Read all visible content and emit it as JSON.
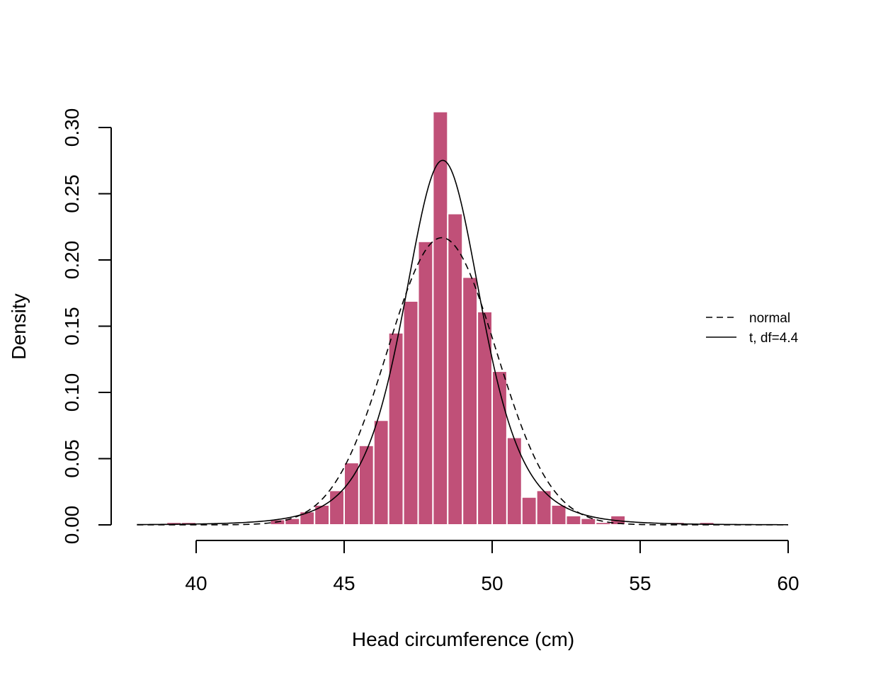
{
  "chart_data": {
    "type": "bar",
    "title": "",
    "xlabel": "Head circumference (cm)",
    "ylabel": "Density",
    "xlim": [
      38,
      60
    ],
    "ylim": [
      0,
      0.3
    ],
    "x_ticks": [
      40,
      45,
      50,
      55,
      60
    ],
    "y_ticks": [
      0.0,
      0.05,
      0.1,
      0.15,
      0.2,
      0.25,
      0.3
    ],
    "y_tick_labels": [
      "0.00",
      "0.05",
      "0.10",
      "0.15",
      "0.20",
      "0.25",
      "0.30"
    ],
    "bin_width": 0.5,
    "bins_start": [
      39.0,
      39.5,
      40.0,
      40.5,
      41.0,
      41.5,
      42.0,
      42.5,
      43.0,
      43.5,
      44.0,
      44.5,
      45.0,
      45.5,
      46.0,
      46.5,
      47.0,
      47.5,
      48.0,
      48.5,
      49.0,
      49.5,
      50.0,
      50.5,
      51.0,
      51.5,
      52.0,
      52.5,
      53.0,
      53.5,
      54.0,
      54.5,
      55.0,
      55.5,
      56.0,
      56.5,
      57.0
    ],
    "density": [
      0.002,
      0.002,
      0.0,
      0.0,
      0.0,
      0.0,
      0.0,
      0.004,
      0.005,
      0.01,
      0.015,
      0.026,
      0.047,
      0.06,
      0.079,
      0.145,
      0.169,
      0.214,
      0.312,
      0.235,
      0.187,
      0.161,
      0.116,
      0.066,
      0.021,
      0.026,
      0.015,
      0.007,
      0.005,
      0.002,
      0.007,
      0.0,
      0.001,
      0.0,
      0.002,
      0.0,
      0.002
    ],
    "bar_color": "#c05078",
    "series": [
      {
        "name": "normal",
        "line_style": "dashed",
        "distribution": "normal",
        "mean": 48.3,
        "sd": 1.84
      },
      {
        "name": "t, df=4.4",
        "line_style": "solid",
        "distribution": "t",
        "df": 4.4,
        "location": 48.33,
        "scale": 1.37
      }
    ],
    "curve_x_range": [
      38,
      60
    ],
    "grid": false,
    "legend_position": "right"
  }
}
